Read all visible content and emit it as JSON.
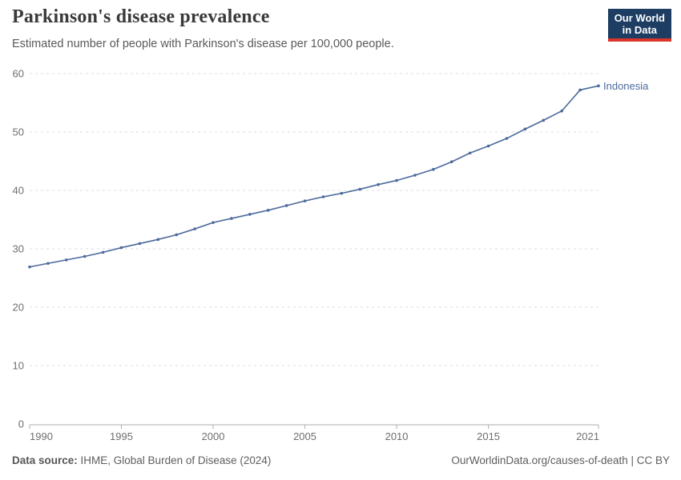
{
  "header": {
    "title": "Parkinson's disease prevalence",
    "subtitle": "Estimated number of people with Parkinson's disease per 100,000 people.",
    "logo": {
      "line1": "Our World",
      "line2": "in Data",
      "bg_color": "#1d3d63",
      "accent_color": "#dc352c"
    }
  },
  "chart_data": {
    "type": "line",
    "title": "Parkinson's disease prevalence",
    "subtitle": "Estimated number of people with Parkinson's disease per 100,000 people.",
    "x": [
      1990,
      1991,
      1992,
      1993,
      1994,
      1995,
      1996,
      1997,
      1998,
      1999,
      2000,
      2001,
      2002,
      2003,
      2004,
      2005,
      2006,
      2007,
      2008,
      2009,
      2010,
      2011,
      2012,
      2013,
      2014,
      2015,
      2016,
      2017,
      2018,
      2019,
      2020,
      2021
    ],
    "series": [
      {
        "name": "Indonesia",
        "color": "#4c6a9c",
        "values": [
          26.9,
          27.5,
          28.1,
          28.7,
          29.4,
          30.2,
          30.9,
          31.6,
          32.4,
          33.4,
          34.5,
          35.2,
          35.9,
          36.6,
          37.4,
          38.2,
          38.9,
          39.5,
          40.2,
          41.0,
          41.7,
          42.6,
          43.6,
          44.9,
          46.4,
          47.6,
          48.9,
          50.5,
          52.0,
          53.6,
          57.2,
          57.9
        ]
      }
    ],
    "xlabel": "",
    "ylabel": "",
    "xlim": [
      1990,
      2021
    ],
    "ylim": [
      0,
      60
    ],
    "y_ticks": [
      0,
      10,
      20,
      30,
      40,
      50,
      60
    ],
    "x_ticks": [
      1990,
      1995,
      2000,
      2005,
      2010,
      2015,
      2021
    ],
    "grid": "horizontal-dashed",
    "legend": "end-of-line-label",
    "tick_label_color": "#6e6e6e",
    "gridline_color": "#dedede",
    "axis_color": "#adadad"
  },
  "footer": {
    "source_label": "Data source:",
    "source_text": " IHME, Global Burden of Disease (2024)",
    "link_text": "OurWorldinData.org/causes-of-death | CC BY"
  }
}
